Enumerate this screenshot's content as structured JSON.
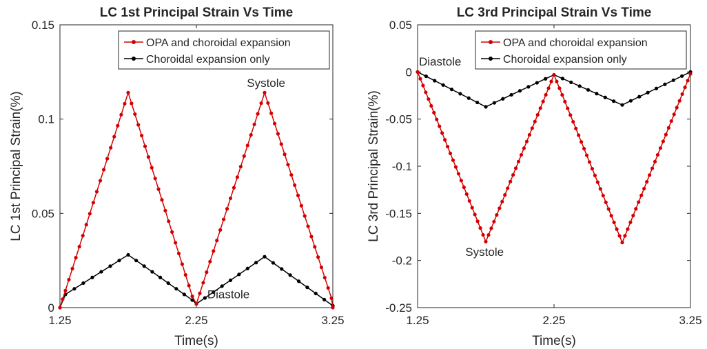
{
  "chart_data": [
    {
      "type": "line",
      "title": "LC 1st Principal Strain Vs Time",
      "xlabel": "Time(s)",
      "ylabel": "LC 1st Principal Strain(%)",
      "xlim": [
        1.25,
        3.25
      ],
      "ylim": [
        0,
        0.15
      ],
      "xticks": [
        1.25,
        2.25,
        3.25
      ],
      "xtick_labels": [
        "1.25",
        "2.25",
        "3.25"
      ],
      "yticks": [
        0,
        0.05,
        0.1,
        0.15
      ],
      "ytick_labels": [
        "0",
        "0.05",
        "0.1",
        "0.15"
      ],
      "grid": false,
      "legend": "top-right",
      "series": [
        {
          "name": "OPA and choroidal expansion",
          "color": "#d40000",
          "marker_spacing": 0.025,
          "points": [
            [
              1.25,
              0
            ],
            [
              1.29,
              0.009
            ],
            [
              1.75,
              0.114
            ],
            [
              2.22,
              0.006
            ],
            [
              2.25,
              0.002
            ],
            [
              2.75,
              0.114
            ],
            [
              3.24,
              0.005
            ],
            [
              3.25,
              0
            ]
          ]
        },
        {
          "name": "Choroidal expansion only",
          "color": "#000000",
          "marker_spacing": 0.0625,
          "points": [
            [
              1.25,
              0
            ],
            [
              1.29,
              0.007
            ],
            [
              1.75,
              0.028
            ],
            [
              2.22,
              0.004
            ],
            [
              2.25,
              0.002
            ],
            [
              2.75,
              0.027
            ],
            [
              3.25,
              0.001
            ]
          ]
        }
      ],
      "annotations": [
        {
          "text": "Systole",
          "x": 2.62,
          "y": 0.117
        },
        {
          "text": "Diastole",
          "x": 2.33,
          "y": 0.005
        }
      ]
    },
    {
      "type": "line",
      "title": "LC 3rd Principal Strain Vs Time",
      "xlabel": "Time(s)",
      "ylabel": "LC 3rd Principal Strain(%)",
      "xlim": [
        1.25,
        3.25
      ],
      "ylim": [
        -0.25,
        0.05
      ],
      "xticks": [
        1.25,
        2.25,
        3.25
      ],
      "xtick_labels": [
        "1.25",
        "2.25",
        "3.25"
      ],
      "yticks": [
        -0.25,
        -0.2,
        -0.15,
        -0.1,
        -0.05,
        0,
        0.05
      ],
      "ytick_labels": [
        "-0.25",
        "-0.2",
        "-0.15",
        "-0.1",
        "-0.05",
        "0",
        "0.05"
      ],
      "grid": false,
      "legend": "top-right",
      "series": [
        {
          "name": "OPA and choroidal expansion",
          "color": "#d40000",
          "marker_spacing": 0.02,
          "points": [
            [
              1.25,
              0
            ],
            [
              1.75,
              -0.18
            ],
            [
              2.25,
              -0.003
            ],
            [
              2.75,
              -0.181
            ],
            [
              3.25,
              -0.002
            ]
          ]
        },
        {
          "name": "Choroidal expansion only",
          "color": "#000000",
          "marker_spacing": 0.0625,
          "points": [
            [
              1.25,
              0
            ],
            [
              1.75,
              -0.037
            ],
            [
              2.25,
              -0.003
            ],
            [
              2.75,
              -0.035
            ],
            [
              3.25,
              0
            ]
          ]
        }
      ],
      "annotations": [
        {
          "text": "Diastole",
          "x": 1.26,
          "y": 0.007
        },
        {
          "text": "Systole",
          "x": 1.6,
          "y": -0.195
        }
      ]
    }
  ]
}
